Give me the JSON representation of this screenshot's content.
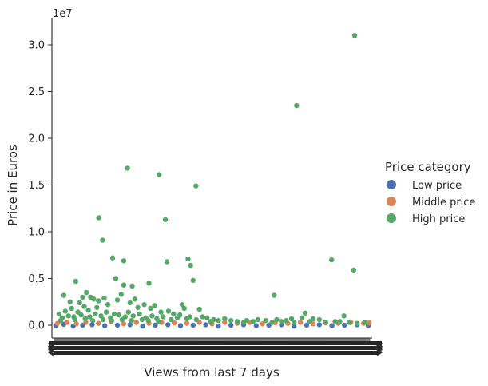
{
  "chart_data": {
    "type": "scatter",
    "title": "",
    "xlabel": "Views from last 7 days",
    "ylabel": "Price in Euros",
    "y_offset_label": "1e7",
    "ylim": [
      -0.15,
      3.25
    ],
    "y_ticks": [
      0.0,
      0.5,
      1.0,
      1.5,
      2.0,
      2.5,
      3.0
    ],
    "y_tick_labels": [
      "0.0",
      "0.5",
      "1.0",
      "1.5",
      "2.0",
      "2.5",
      "3.0"
    ],
    "x_tick_labels_note": "hundreds of overlapping category tick labels render as an unreadable black band",
    "grid": false,
    "legend": {
      "title": "Price category",
      "placement": "right",
      "entries": [
        "Low price",
        "Middle price",
        "High price"
      ]
    },
    "colors": {
      "Low price": "#4c72b0",
      "Middle price": "#dd8452",
      "High price": "#55a868"
    },
    "x_category_range": [
      0,
      1000
    ],
    "series": [
      {
        "name": "Low price",
        "points": [
          [
            5,
            -0.005
          ],
          [
            30,
            0.01
          ],
          [
            60,
            -0.01
          ],
          [
            90,
            0.0
          ],
          [
            120,
            0.005
          ],
          [
            160,
            -0.005
          ],
          [
            200,
            0.0
          ],
          [
            240,
            0.005
          ],
          [
            280,
            -0.01
          ],
          [
            320,
            0.0
          ],
          [
            360,
            0.005
          ],
          [
            400,
            -0.005
          ],
          [
            440,
            0.0
          ],
          [
            480,
            0.005
          ],
          [
            520,
            -0.01
          ],
          [
            560,
            0.0
          ],
          [
            600,
            0.005
          ],
          [
            640,
            -0.005
          ],
          [
            680,
            0.0
          ],
          [
            720,
            0.005
          ],
          [
            760,
            -0.01
          ],
          [
            800,
            0.0
          ],
          [
            840,
            0.005
          ],
          [
            880,
            -0.005
          ],
          [
            920,
            0.0
          ],
          [
            960,
            0.005
          ],
          [
            995,
            -0.005
          ]
        ]
      },
      {
        "name": "Middle price",
        "points": [
          [
            10,
            0.02
          ],
          [
            40,
            0.03
          ],
          [
            70,
            0.015
          ],
          [
            100,
            0.03
          ],
          [
            140,
            0.02
          ],
          [
            180,
            0.035
          ],
          [
            220,
            0.015
          ],
          [
            260,
            0.03
          ],
          [
            300,
            0.02
          ],
          [
            340,
            0.03
          ],
          [
            380,
            0.025
          ],
          [
            420,
            0.02
          ],
          [
            460,
            0.03
          ],
          [
            500,
            0.015
          ],
          [
            540,
            0.03
          ],
          [
            580,
            0.02
          ],
          [
            620,
            0.03
          ],
          [
            660,
            0.015
          ],
          [
            700,
            0.025
          ],
          [
            740,
            0.02
          ],
          [
            780,
            0.03
          ],
          [
            820,
            0.015
          ],
          [
            860,
            0.025
          ],
          [
            900,
            0.02
          ],
          [
            940,
            0.03
          ],
          [
            980,
            0.02
          ],
          [
            998,
            0.025
          ]
        ]
      },
      {
        "name": "High price",
        "points": [
          [
            952,
            3.1
          ],
          [
            768,
            2.35
          ],
          [
            232,
            1.68
          ],
          [
            332,
            1.61
          ],
          [
            449,
            1.49
          ],
          [
            141,
            1.15
          ],
          [
            352,
            1.13
          ],
          [
            153,
            0.91
          ],
          [
            879,
            0.7
          ],
          [
            185,
            0.72
          ],
          [
            220,
            0.69
          ],
          [
            357,
            0.68
          ],
          [
            424,
            0.71
          ],
          [
            432,
            0.64
          ],
          [
            949,
            0.59
          ],
          [
            68,
            0.47
          ],
          [
            195,
            0.5
          ],
          [
            220,
            0.43
          ],
          [
            247,
            0.42
          ],
          [
            300,
            0.45
          ],
          [
            440,
            0.48
          ],
          [
            697,
            0.32
          ],
          [
            30,
            0.32
          ],
          [
            50,
            0.25
          ],
          [
            80,
            0.24
          ],
          [
            90,
            0.3
          ],
          [
            102,
            0.35
          ],
          [
            115,
            0.3
          ],
          [
            125,
            0.28
          ],
          [
            140,
            0.26
          ],
          [
            158,
            0.29
          ],
          [
            170,
            0.22
          ],
          [
            200,
            0.27
          ],
          [
            212,
            0.33
          ],
          [
            240,
            0.24
          ],
          [
            255,
            0.28
          ],
          [
            265,
            0.19
          ],
          [
            285,
            0.22
          ],
          [
            305,
            0.18
          ],
          [
            318,
            0.21
          ],
          [
            338,
            0.14
          ],
          [
            362,
            0.15
          ],
          [
            378,
            0.12
          ],
          [
            405,
            0.22
          ],
          [
            412,
            0.18
          ],
          [
            460,
            0.17
          ],
          [
            470,
            0.09
          ],
          [
            484,
            0.08
          ],
          [
            505,
            0.06
          ],
          [
            540,
            0.07
          ],
          [
            560,
            0.05
          ],
          [
            580,
            0.04
          ],
          [
            610,
            0.05
          ],
          [
            645,
            0.06
          ],
          [
            670,
            0.05
          ],
          [
            705,
            0.06
          ],
          [
            735,
            0.05
          ],
          [
            752,
            0.07
          ],
          [
            785,
            0.08
          ],
          [
            795,
            0.13
          ],
          [
            820,
            0.07
          ],
          [
            840,
            0.06
          ],
          [
            905,
            0.04
          ],
          [
            918,
            0.1
          ],
          [
            935,
            0.03
          ],
          [
            985,
            0.03
          ],
          [
            15,
            0.12
          ],
          [
            25,
            0.08
          ],
          [
            35,
            0.15
          ],
          [
            45,
            0.1
          ],
          [
            55,
            0.18
          ],
          [
            62,
            0.09
          ],
          [
            75,
            0.14
          ],
          [
            85,
            0.11
          ],
          [
            95,
            0.2
          ],
          [
            108,
            0.16
          ],
          [
            112,
            0.09
          ],
          [
            130,
            0.12
          ],
          [
            135,
            0.19
          ],
          [
            148,
            0.1
          ],
          [
            165,
            0.14
          ],
          [
            178,
            0.08
          ],
          [
            190,
            0.12
          ],
          [
            205,
            0.11
          ],
          [
            225,
            0.09
          ],
          [
            235,
            0.14
          ],
          [
            250,
            0.1
          ],
          [
            270,
            0.12
          ],
          [
            290,
            0.08
          ],
          [
            310,
            0.1
          ],
          [
            325,
            0.07
          ],
          [
            345,
            0.09
          ],
          [
            370,
            0.06
          ],
          [
            390,
            0.08
          ],
          [
            398,
            0.11
          ],
          [
            420,
            0.07
          ],
          [
            430,
            0.09
          ],
          [
            450,
            0.06
          ],
          [
            495,
            0.04
          ],
          [
            520,
            0.05
          ],
          [
            600,
            0.03
          ],
          [
            630,
            0.04
          ],
          [
            690,
            0.03
          ],
          [
            720,
            0.04
          ],
          [
            760,
            0.03
          ],
          [
            810,
            0.04
          ],
          [
            860,
            0.03
          ],
          [
            890,
            0.04
          ],
          [
            960,
            0.02
          ],
          [
            20,
            0.05
          ],
          [
            65,
            0.06
          ],
          [
            98,
            0.07
          ],
          [
            122,
            0.05
          ],
          [
            155,
            0.06
          ],
          [
            182,
            0.05
          ],
          [
            215,
            0.06
          ],
          [
            245,
            0.05
          ],
          [
            278,
            0.06
          ],
          [
            298,
            0.05
          ],
          [
            330,
            0.04
          ]
        ]
      }
    ]
  }
}
